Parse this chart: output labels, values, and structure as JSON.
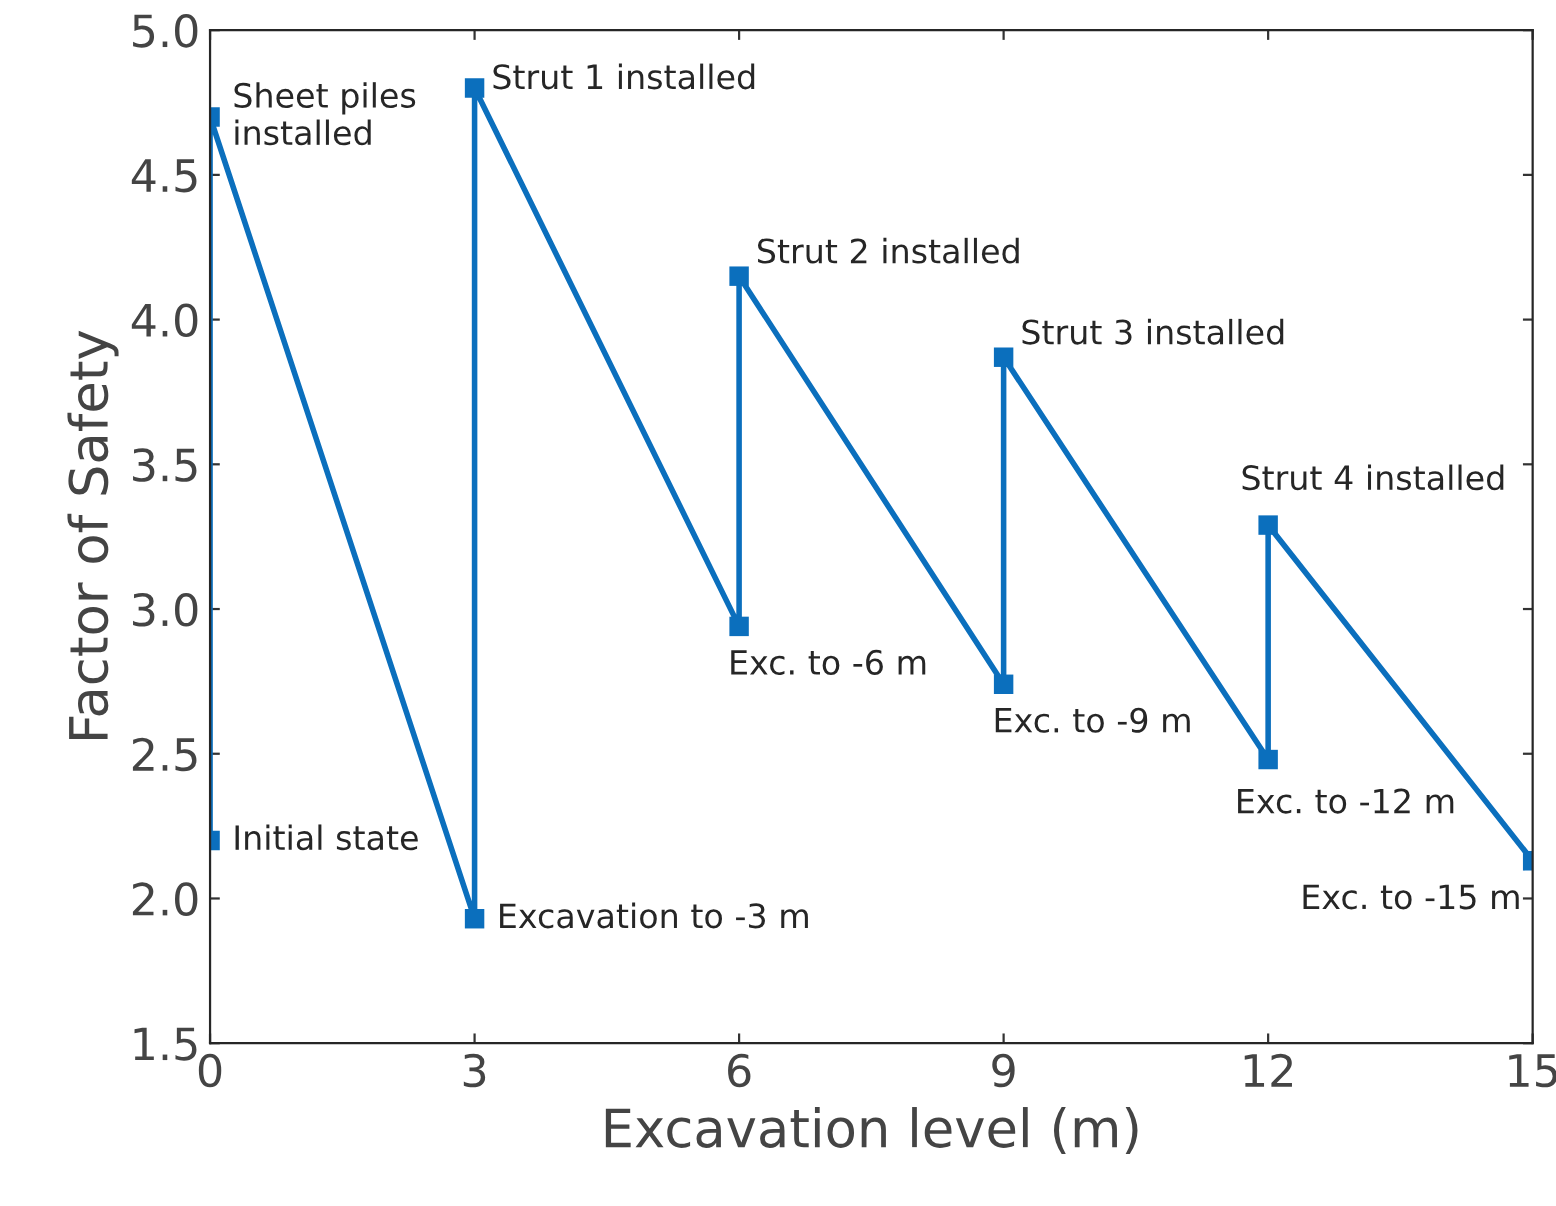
{
  "chart_data": {
    "type": "line",
    "xlabel": "Excavation level (m)",
    "ylabel": "Factor of Safety",
    "x": [
      0,
      0,
      3,
      3,
      6,
      6,
      9,
      9,
      12,
      12,
      15
    ],
    "series": [
      {
        "color": "#0b6fbd",
        "values": [
          2.2,
          4.7,
          1.93,
          4.8,
          2.94,
          4.15,
          2.74,
          3.87,
          2.48,
          3.29,
          2.13
        ]
      }
    ],
    "marker": "square",
    "line_style": "solid",
    "grid": false,
    "legend": false,
    "xlim": [
      0,
      15
    ],
    "xticks": [
      0,
      3,
      6,
      9,
      12,
      15
    ],
    "ylim": [
      1.5,
      5.0
    ],
    "yticks": [
      1.5,
      {
        "value": 2,
        "label": "2.0"
      },
      2.5,
      {
        "value": 3,
        "label": "3.0"
      },
      3.5,
      {
        "value": 4,
        "label": "4.0"
      },
      4.5,
      {
        "value": 5,
        "label": "5.0"
      }
    ],
    "annotations": [
      {
        "text": "Initial state",
        "x": 0,
        "y": 2.2
      },
      {
        "text": "Sheet piles\ninstalled",
        "x": 0,
        "y": 4.7
      },
      {
        "text": "Excavation to -3 m",
        "x": 3,
        "y": 1.93
      },
      {
        "text": "Strut 1 installed",
        "x": 3,
        "y": 4.8
      },
      {
        "text": "Exc. to -6 m",
        "x": 6,
        "y": 2.94
      },
      {
        "text": "Strut 2 installed",
        "x": 6,
        "y": 4.15
      },
      {
        "text": "Exc. to -9 m",
        "x": 9,
        "y": 2.74
      },
      {
        "text": "Strut 3 installed",
        "x": 9,
        "y": 3.87
      },
      {
        "text": "Exc. to -12 m",
        "x": 12,
        "y": 2.48
      },
      {
        "text": "Strut 4 installed",
        "x": 12,
        "y": 3.29
      },
      {
        "text": "Exc. to -15 m",
        "x": 15,
        "y": 2.13
      }
    ]
  }
}
